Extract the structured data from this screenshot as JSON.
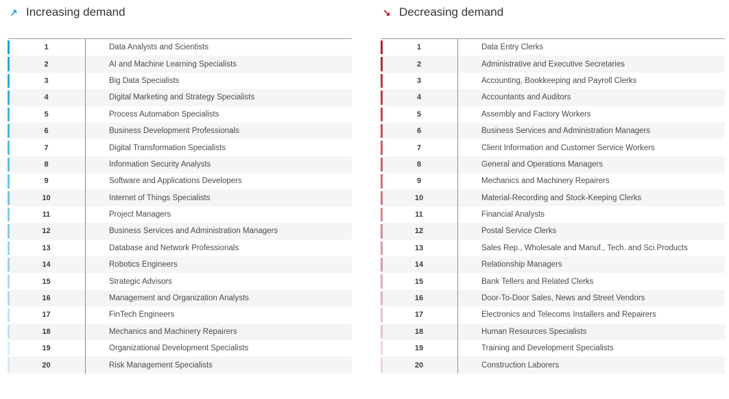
{
  "increasing": {
    "title": "Increasing demand",
    "arrow": "↗",
    "accent": "#1aa3d9",
    "items": [
      {
        "rank": "1",
        "label": "Data Analysts and Scientists"
      },
      {
        "rank": "2",
        "label": "AI and Machine Learning Specialists"
      },
      {
        "rank": "3",
        "label": "Big Data Specialists"
      },
      {
        "rank": "4",
        "label": "Digital Marketing and Strategy Specialists"
      },
      {
        "rank": "5",
        "label": "Process Automation Specialists"
      },
      {
        "rank": "6",
        "label": "Business Development Professionals"
      },
      {
        "rank": "7",
        "label": "Digital Transformation Specialists"
      },
      {
        "rank": "8",
        "label": "Information Security Analysts"
      },
      {
        "rank": "9",
        "label": "Software and Applications Developers"
      },
      {
        "rank": "10",
        "label": "Internet of Things Specialists"
      },
      {
        "rank": "11",
        "label": "Project Managers"
      },
      {
        "rank": "12",
        "label": "Business Services and Administration Managers"
      },
      {
        "rank": "13",
        "label": "Database and Network Professionals"
      },
      {
        "rank": "14",
        "label": "Robotics Engineers"
      },
      {
        "rank": "15",
        "label": "Strategic Advisors"
      },
      {
        "rank": "16",
        "label": "Management and Organization Analysts"
      },
      {
        "rank": "17",
        "label": "FinTech Engineers"
      },
      {
        "rank": "18",
        "label": "Mechanics and Machinery Repairers"
      },
      {
        "rank": "19",
        "label": "Organizational Development Specialists"
      },
      {
        "rank": "20",
        "label": "Risk Management Specialists"
      }
    ]
  },
  "decreasing": {
    "title": "Decreasing demand",
    "arrow": "↘",
    "accent": "#b5202e",
    "items": [
      {
        "rank": "1",
        "label": "Data Entry Clerks"
      },
      {
        "rank": "2",
        "label": "Administrative and Executive Secretaries"
      },
      {
        "rank": "3",
        "label": "Accounting,  Bookkeeping and Payroll Clerks"
      },
      {
        "rank": "4",
        "label": "Accountants and Auditors"
      },
      {
        "rank": "5",
        "label": "Assembly and Factory Workers"
      },
      {
        "rank": "6",
        "label": "Business Services and Administration Managers"
      },
      {
        "rank": "7",
        "label": "Client Information and Customer Service Workers"
      },
      {
        "rank": "8",
        "label": "General and Operations Managers"
      },
      {
        "rank": "9",
        "label": "Mechanics and Machinery Repairers"
      },
      {
        "rank": "10",
        "label": "Material-Recording and Stock-Keeping Clerks"
      },
      {
        "rank": "11",
        "label": "Financial Analysts"
      },
      {
        "rank": "12",
        "label": "Postal Service Clerks"
      },
      {
        "rank": "13",
        "label": "Sales Rep., Wholesale and Manuf., Tech. and Sci.Products"
      },
      {
        "rank": "14",
        "label": "Relationship Managers"
      },
      {
        "rank": "15",
        "label": "Bank Tellers and Related Clerks"
      },
      {
        "rank": "16",
        "label": "Door-To-Door Sales, News and Street Vendors"
      },
      {
        "rank": "17",
        "label": "Electronics and Telecoms Installers and Repairers"
      },
      {
        "rank": "18",
        "label": "Human Resources Specialists"
      },
      {
        "rank": "19",
        "label": "Training and Development Specialists"
      },
      {
        "rank": "20",
        "label": "Construction Laborers"
      }
    ]
  }
}
